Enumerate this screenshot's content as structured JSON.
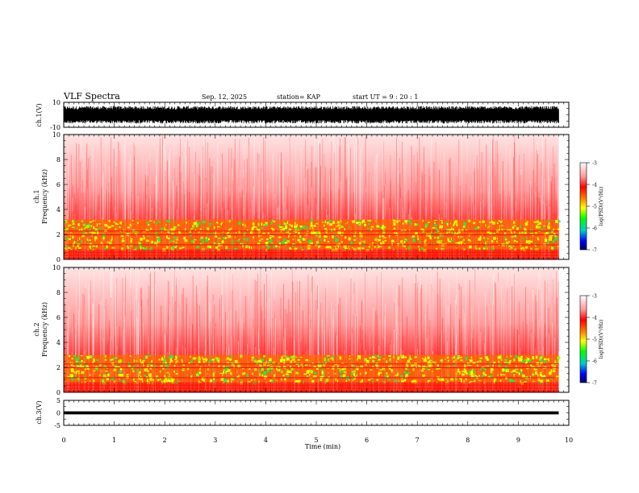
{
  "header": {
    "title": "VLF Spectra",
    "date": "Sep. 12, 2025",
    "station": "station= KAP",
    "start": "start  UT  =   9 : 20 : 1"
  },
  "chart_data": {
    "type": "heatmap",
    "title": "VLF Spectra",
    "xlabel": "Time  (min)",
    "xlim": [
      0,
      10
    ],
    "x_ticks": [
      "0",
      "1",
      "2",
      "3",
      "4",
      "5",
      "6",
      "7",
      "8",
      "9",
      "10"
    ],
    "data_end_min": 9.8,
    "panels": [
      {
        "kind": "waveform",
        "ylabel": "ch.1(V)",
        "ylim": [
          -10,
          10
        ],
        "y_ticks": [
          "10",
          "-10"
        ],
        "amplitude_range": [
          -7,
          7
        ]
      },
      {
        "kind": "spectrogram",
        "ylabel_top": "ch.1",
        "ylabel": "Frequency  (kHz)",
        "ylim": [
          0,
          10
        ],
        "y_ticks": [
          "0",
          "2",
          "4",
          "6",
          "8",
          "10"
        ],
        "bands_khz": [
          [
            0.8,
            3.2
          ]
        ],
        "colorbar": {
          "label": "log(PSD)(V²/Hz)",
          "range": [
            -7,
            -3
          ],
          "ticks": [
            "-3",
            "-4",
            "-5",
            "-6",
            "-7"
          ]
        }
      },
      {
        "kind": "spectrogram",
        "ylabel_top": "ch.2",
        "ylabel": "Frequency  (kHz)",
        "ylim": [
          0,
          10
        ],
        "y_ticks": [
          "0",
          "2",
          "4",
          "6",
          "8",
          "10"
        ],
        "bands_khz": [
          [
            0.8,
            3.0
          ]
        ],
        "colorbar": {
          "label": "log(PSD)(V²/Hz)",
          "range": [
            -7,
            -3
          ],
          "ticks": [
            "-3",
            "-4",
            "-5",
            "-6",
            "-7"
          ]
        }
      },
      {
        "kind": "waveform",
        "ylabel": "ch.3(V)",
        "ylim": [
          -5,
          5
        ],
        "y_ticks": [
          "5",
          "0",
          "-5"
        ],
        "amplitude_range": [
          -0.6,
          0.6
        ]
      }
    ],
    "colors": {
      "low_psd": "#0000ff",
      "mid_psd": "#00ff00",
      "high_mid_psd": "#ffff00",
      "high_psd": "#ff0000",
      "background": "#ffffff"
    }
  }
}
